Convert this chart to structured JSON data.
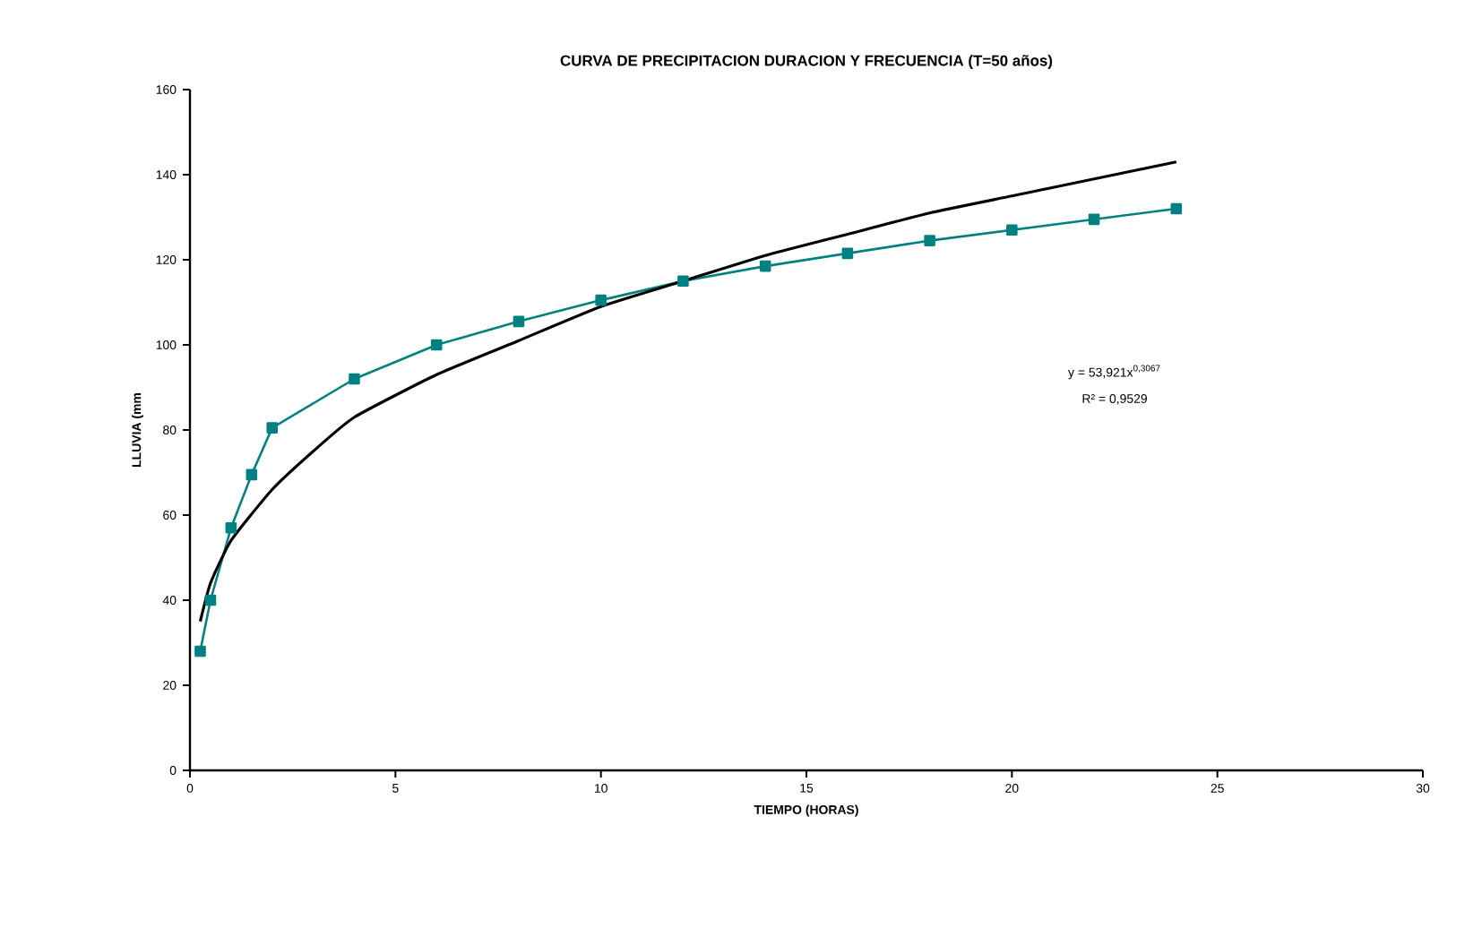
{
  "chart_data": {
    "type": "line",
    "title": "CURVA DE PRECIPITACION DURACION Y FRECUENCIA (T=50 años)",
    "xlabel": "TIEMPO (HORAS)",
    "ylabel": "LLUVIA (mm",
    "xlim": [
      0,
      30
    ],
    "ylim": [
      0,
      160
    ],
    "xticks": [
      0,
      5,
      10,
      15,
      20,
      25,
      30
    ],
    "yticks": [
      0,
      20,
      40,
      60,
      80,
      100,
      120,
      140,
      160
    ],
    "grid": false,
    "series": [
      {
        "color": "#008080",
        "marker": "square",
        "x": [
          0.25,
          0.5,
          1,
          1.5,
          2,
          4,
          6,
          8,
          10,
          12,
          14,
          16,
          18,
          20,
          22,
          24
        ],
        "values": [
          28,
          40,
          57,
          69.5,
          80.5,
          92,
          100,
          105.5,
          110.5,
          115,
          118.5,
          121.5,
          124.5,
          127,
          129.5,
          132
        ]
      },
      {
        "color": "#000000",
        "marker": "none",
        "x": [
          0.25,
          0.5,
          1,
          2,
          3,
          4,
          6,
          8,
          10,
          12,
          14,
          16,
          18,
          20,
          22,
          24
        ],
        "values": [
          35,
          44,
          54,
          66,
          75,
          83,
          93,
          101,
          109,
          115,
          121,
          126,
          131,
          135,
          139,
          143
        ]
      }
    ],
    "annotations": [
      "y = 53,921x$^{0,3067}$",
      "R² = 0,9529"
    ]
  }
}
